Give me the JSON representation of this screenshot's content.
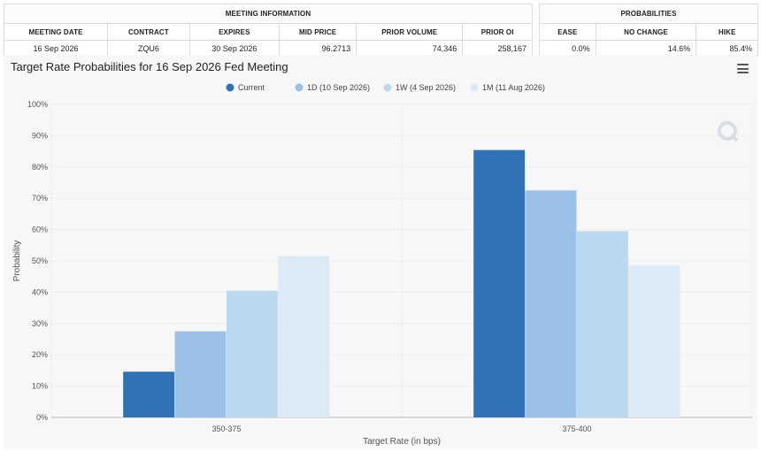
{
  "meeting_info": {
    "header": "MEETING INFORMATION",
    "columns": [
      "MEETING DATE",
      "CONTRACT",
      "EXPIRES",
      "MID PRICE",
      "PRIOR VOLUME",
      "PRIOR OI"
    ],
    "row": {
      "meeting_date": "16 Sep 2026",
      "contract": "ZQU6",
      "expires": "30 Sep 2026",
      "mid_price": "96.2713",
      "prior_volume": "74,346",
      "prior_oi": "258,167"
    }
  },
  "probabilities": {
    "header": "PROBABILITIES",
    "columns": [
      "EASE",
      "NO CHANGE",
      "HIKE"
    ],
    "row": {
      "ease": "0.0%",
      "no_change": "14.6%",
      "hike": "85.4%"
    }
  },
  "chart_data": {
    "type": "bar",
    "title": "Target Rate Probabilities for 16 Sep 2026 Fed Meeting",
    "xlabel": "Target Rate (in bps)",
    "ylabel": "Probability",
    "ylim": [
      0,
      100
    ],
    "yticks": [
      0,
      10,
      20,
      30,
      40,
      50,
      60,
      70,
      80,
      90,
      100
    ],
    "ytick_suffix": "%",
    "grid": true,
    "legend_position": "top-center",
    "categories": [
      "350-375",
      "375-400"
    ],
    "series": [
      {
        "name": "Current",
        "color": "#2f73b6",
        "values": [
          14.6,
          85.4
        ]
      },
      {
        "name": "1D (10 Sep 2026)",
        "color": "#9bc2e6",
        "values": [
          27.5,
          72.5
        ]
      },
      {
        "name": "1W (4 Sep 2026)",
        "color": "#bcd8ef",
        "values": [
          40.5,
          59.5
        ]
      },
      {
        "name": "1M (11 Aug 2026)",
        "color": "#dce9f6",
        "values": [
          51.5,
          48.5
        ]
      }
    ]
  }
}
